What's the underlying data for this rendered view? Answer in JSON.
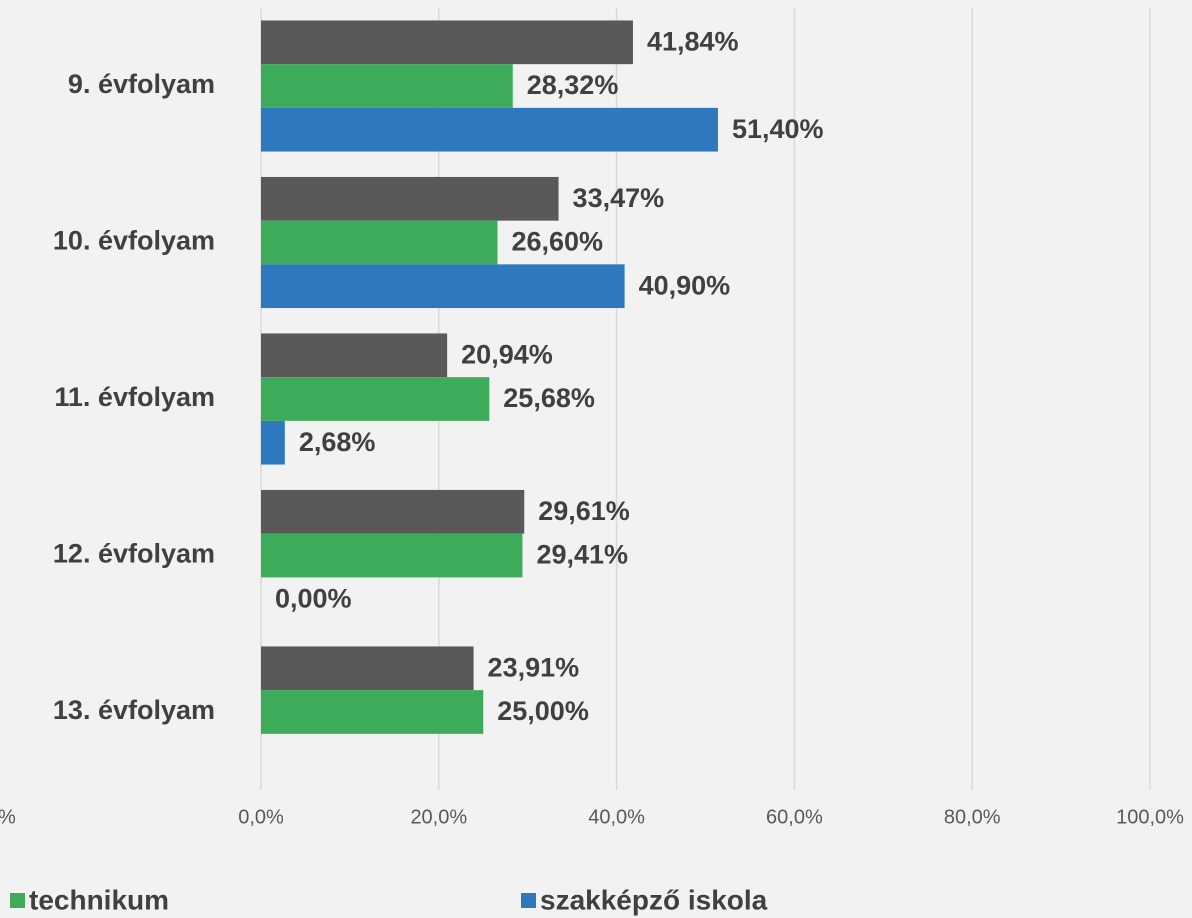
{
  "chart_data": {
    "type": "barh",
    "categories": [
      "9. évfolyam",
      "10. évfolyam",
      "11. évfolyam",
      "12. évfolyam",
      "13. évfolyam"
    ],
    "series": [
      {
        "color": "#595959",
        "values": [
          41.84,
          33.47,
          20.94,
          29.61,
          23.91
        ],
        "value_labels": [
          "41,84%",
          "33,47%",
          "20,94%",
          "29,61%",
          "23,91%"
        ]
      },
      {
        "name": "technikum",
        "color": "#3dab5a",
        "values": [
          28.32,
          26.6,
          25.68,
          29.41,
          25.0
        ],
        "value_labels": [
          "28,32%",
          "26,60%",
          "25,68%",
          "29,41%",
          "25,00%"
        ]
      },
      {
        "name": "szakképző iskola",
        "color": "#2e78be",
        "values": [
          51.4,
          40.9,
          2.68,
          0.0,
          null
        ],
        "value_labels": [
          "51,40%",
          "40,90%",
          "2,68%",
          "0,00%",
          null
        ]
      }
    ],
    "xlim": [
      0,
      100
    ],
    "xticks": [
      {
        "value": 0,
        "label": "0,0%"
      },
      {
        "value": 20,
        "label": "20,0%"
      },
      {
        "value": 40,
        "label": "40,0%"
      },
      {
        "value": 60,
        "label": "60,0%"
      },
      {
        "value": 80,
        "label": "80,0%"
      },
      {
        "value": 100,
        "label": "100,0%"
      }
    ],
    "annotation": "%",
    "grid": true,
    "legend": "bottom"
  }
}
